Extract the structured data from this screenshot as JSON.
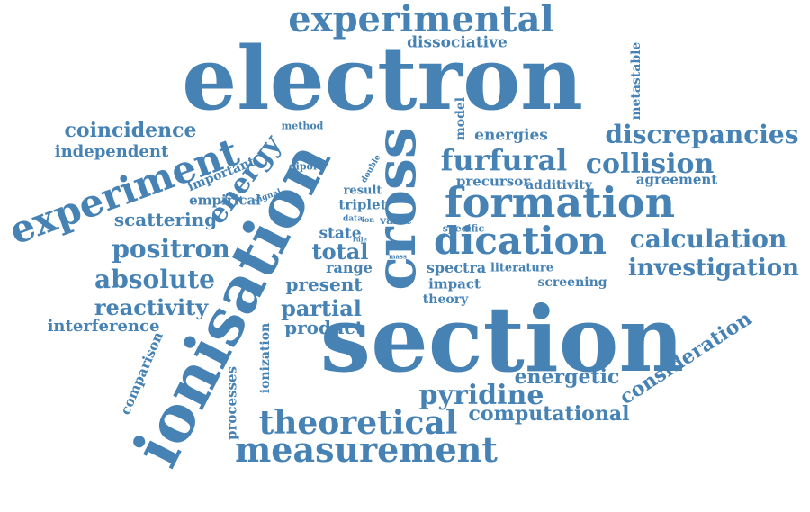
{
  "colors": {
    "word": "#4682b4",
    "background": "#ffffff"
  },
  "words": [
    {
      "text": "electron"
    },
    {
      "text": "section"
    },
    {
      "text": "ionisation"
    },
    {
      "text": "cross"
    },
    {
      "text": "experimental"
    },
    {
      "text": "experiment"
    },
    {
      "text": "formation"
    },
    {
      "text": "dication"
    },
    {
      "text": "furfural"
    },
    {
      "text": "collision"
    },
    {
      "text": "discrepancies"
    },
    {
      "text": "calculation"
    },
    {
      "text": "investigation"
    },
    {
      "text": "theoretical"
    },
    {
      "text": "measurement"
    },
    {
      "text": "pyridine"
    },
    {
      "text": "positron"
    },
    {
      "text": "absolute"
    },
    {
      "text": "reactivity"
    },
    {
      "text": "coincidence"
    },
    {
      "text": "independent"
    },
    {
      "text": "scattering"
    },
    {
      "text": "energy"
    },
    {
      "text": "empirical"
    },
    {
      "text": "important"
    },
    {
      "text": "interference"
    },
    {
      "text": "comparison"
    },
    {
      "text": "partial"
    },
    {
      "text": "present"
    },
    {
      "text": "product"
    },
    {
      "text": "total"
    },
    {
      "text": "range"
    },
    {
      "text": "state"
    },
    {
      "text": "triplet"
    },
    {
      "text": "result"
    },
    {
      "text": "value"
    },
    {
      "text": "specific"
    },
    {
      "text": "spectra"
    },
    {
      "text": "literature"
    },
    {
      "text": "impact"
    },
    {
      "text": "theory"
    },
    {
      "text": "screening"
    },
    {
      "text": "energetic"
    },
    {
      "text": "computational"
    },
    {
      "text": "consideration"
    },
    {
      "text": "energies"
    },
    {
      "text": "precursor"
    },
    {
      "text": "additivity"
    },
    {
      "text": "agreement"
    },
    {
      "text": "model"
    },
    {
      "text": "metastable"
    },
    {
      "text": "dissociative"
    },
    {
      "text": "method"
    },
    {
      "text": "dipole"
    },
    {
      "text": "signal"
    },
    {
      "text": "double"
    },
    {
      "text": "data"
    },
    {
      "text": "ion"
    },
    {
      "text": "rule"
    },
    {
      "text": "mass"
    },
    {
      "text": "processes"
    },
    {
      "text": "ionization"
    }
  ]
}
